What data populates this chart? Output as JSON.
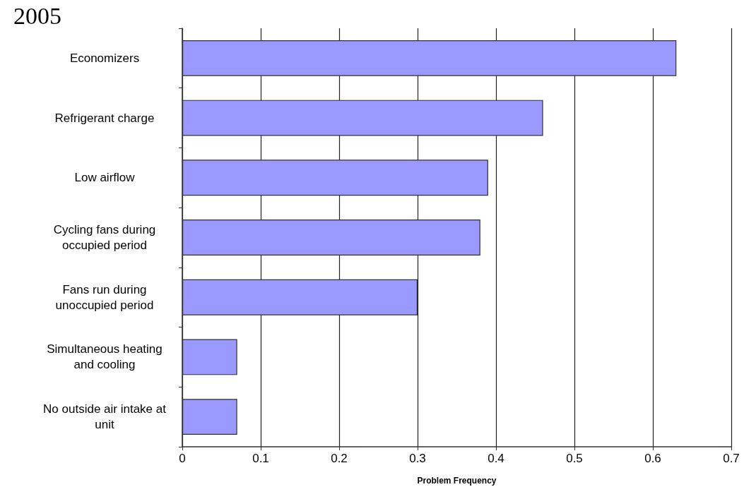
{
  "chart_data": {
    "type": "bar",
    "orientation": "horizontal",
    "title": "2005",
    "xlabel": "Problem Frequency",
    "categories": [
      "Economizers",
      "Refrigerant charge",
      "Low airflow",
      "Cycling fans during\noccupied period",
      "Fans run during\nunoccupied period",
      "Simultaneous heating\nand cooling",
      "No outside air intake at\nunit"
    ],
    "values": [
      0.63,
      0.46,
      0.39,
      0.38,
      0.3,
      0.07,
      0.07
    ],
    "color": "#9999ff",
    "xlim": [
      0,
      0.7
    ],
    "xticks": [
      0,
      0.1,
      0.2,
      0.3,
      0.4,
      0.5,
      0.6,
      0.7
    ],
    "grid": "x"
  }
}
